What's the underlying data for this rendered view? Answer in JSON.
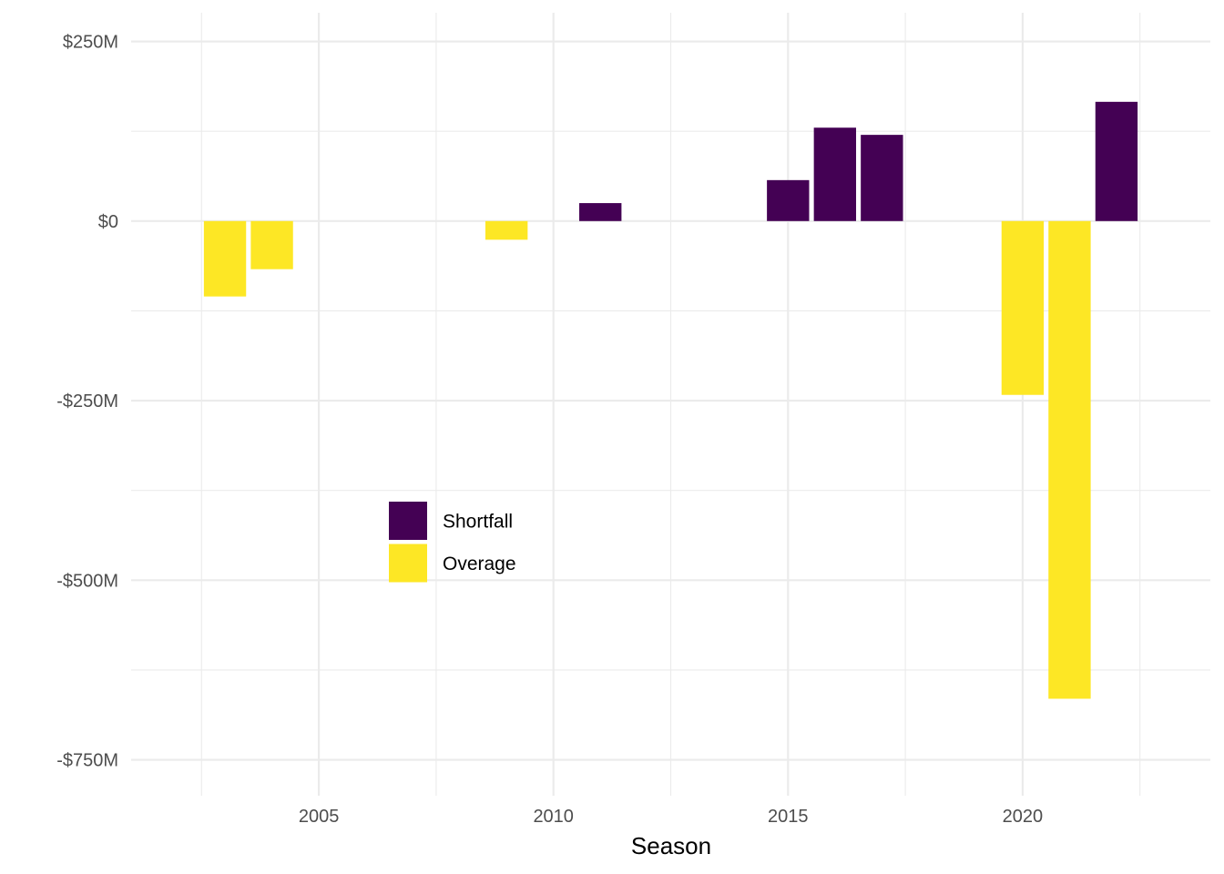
{
  "chart_data": {
    "type": "bar",
    "title": "",
    "xlabel": "Season",
    "ylabel": "",
    "x": [
      2003,
      2004,
      2009,
      2011,
      2015,
      2016,
      2017,
      2020,
      2021,
      2022
    ],
    "values": [
      -105,
      -67,
      -26,
      25,
      57,
      130,
      120,
      -242,
      -665,
      166
    ],
    "value_unit": "$M",
    "xlim": [
      2001,
      2024
    ],
    "ylim": [
      -800,
      290
    ],
    "x_ticks": [
      2005,
      2010,
      2015,
      2020
    ],
    "x_tick_labels": [
      "2005",
      "2010",
      "2015",
      "2020"
    ],
    "y_ticks": [
      250,
      0,
      -250,
      -500,
      -750
    ],
    "y_tick_labels": [
      "$250M",
      "$0",
      "-$250M",
      "-$500M",
      "-$750M"
    ],
    "grid": true,
    "legend": {
      "placement": "inside-center-left",
      "entries": [
        {
          "label": "Shortfall",
          "color": "#440154"
        },
        {
          "label": "Overage",
          "color": "#FDE725"
        }
      ]
    },
    "colors": {
      "positive": "#440154",
      "negative": "#FDE725"
    }
  }
}
